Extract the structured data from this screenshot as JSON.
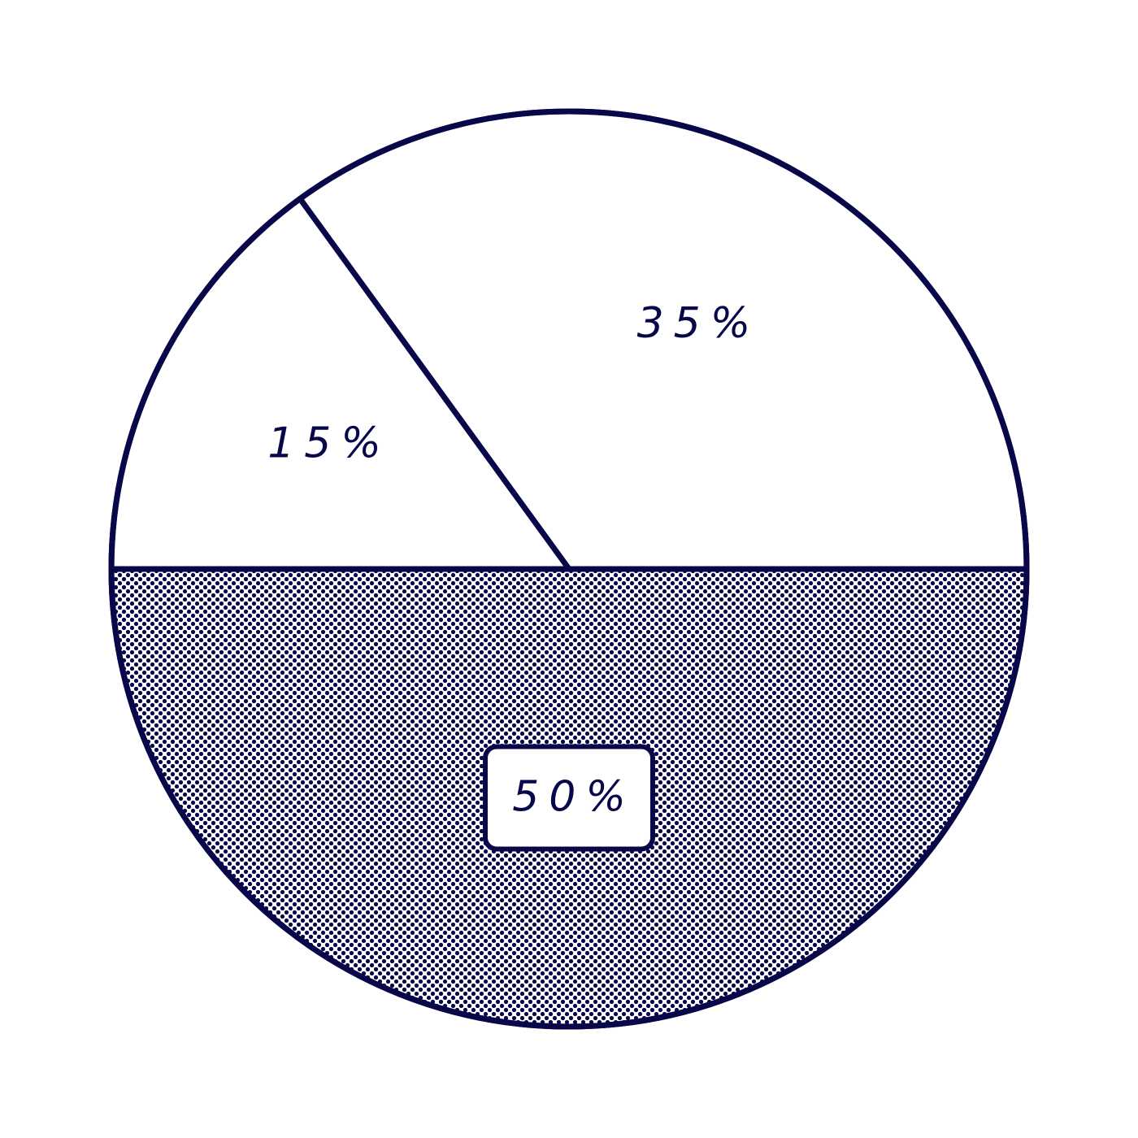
{
  "colors": {
    "stroke": "#07074a",
    "background": "#ffffff",
    "dot_fill": "#07074a"
  },
  "chart_data": {
    "type": "pie",
    "title": "",
    "start_angle_deg": 0,
    "direction": "counterclockwise",
    "slices": [
      {
        "label": "35%",
        "value": 35,
        "pattern": "none"
      },
      {
        "label": "15%",
        "value": 15,
        "pattern": "none"
      },
      {
        "label": "50%",
        "value": 50,
        "pattern": "dots",
        "label_boxed": true
      }
    ]
  }
}
